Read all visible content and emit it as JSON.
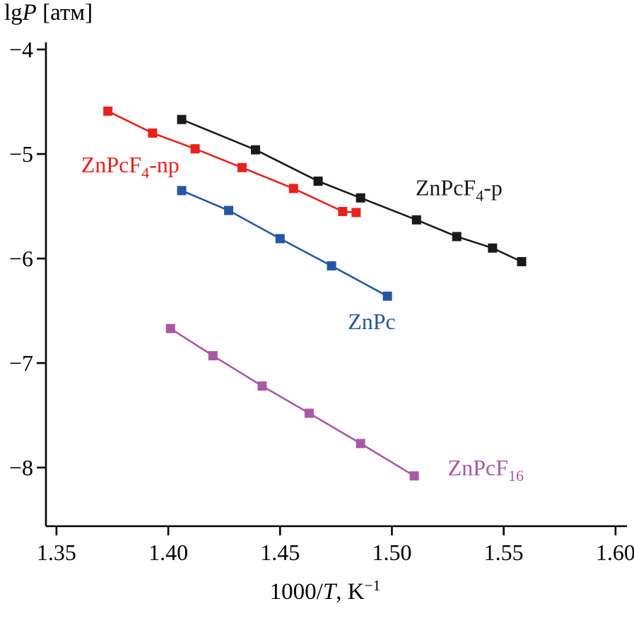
{
  "chart_data": {
    "type": "line",
    "title": "",
    "y_axis_title_parts": [
      {
        "t": "lg"
      },
      {
        "t": "P",
        "italic": true
      },
      {
        "t": " [атм]"
      }
    ],
    "x_axis_title_parts": [
      {
        "t": "1000/"
      },
      {
        "t": "T",
        "italic": true
      },
      {
        "t": ", K"
      },
      {
        "t": "−1",
        "sup": true
      }
    ],
    "xlim": [
      1.3453,
      1.6051
    ],
    "ylim": [
      -8.561,
      -3.932
    ],
    "grid": false,
    "legend_position": "inline-annotations",
    "x_ticks": [
      {
        "value": 1.35,
        "label": "1.35"
      },
      {
        "value": 1.4,
        "label": "1.40"
      },
      {
        "value": 1.45,
        "label": "1.45"
      },
      {
        "value": 1.5,
        "label": "1.50"
      },
      {
        "value": 1.55,
        "label": "1.55"
      },
      {
        "value": 1.6,
        "label": "1.60"
      }
    ],
    "y_ticks": [
      {
        "value": -4,
        "label": "−4"
      },
      {
        "value": -5,
        "label": "−5"
      },
      {
        "value": -6,
        "label": "−6"
      },
      {
        "value": -7,
        "label": "−7"
      },
      {
        "value": -8,
        "label": "−8"
      }
    ],
    "series": [
      {
        "name": "ZnPcF4-np",
        "color": "#e8211d",
        "label_parts": [
          {
            "t": "ZnPcF"
          },
          {
            "t": "4",
            "sub": true
          },
          {
            "t": "-np"
          }
        ],
        "label_pos": {
          "x": 1.383,
          "y": -5.1
        },
        "points": [
          [
            1.373,
            -4.59
          ],
          [
            1.393,
            -4.8
          ],
          [
            1.412,
            -4.95
          ],
          [
            1.433,
            -5.13
          ],
          [
            1.456,
            -5.33
          ],
          [
            1.478,
            -5.55
          ],
          [
            1.484,
            -5.56
          ]
        ]
      },
      {
        "name": "ZnPcF4-p",
        "color": "#1a1a1a",
        "label_parts": [
          {
            "t": "ZnPcF"
          },
          {
            "t": "4",
            "sub": true
          },
          {
            "t": "-p"
          }
        ],
        "label_pos": {
          "x": 1.53,
          "y": -5.32
        },
        "points": [
          [
            1.406,
            -4.67
          ],
          [
            1.439,
            -4.96
          ],
          [
            1.467,
            -5.26
          ],
          [
            1.486,
            -5.42
          ],
          [
            1.511,
            -5.63
          ],
          [
            1.529,
            -5.79
          ],
          [
            1.545,
            -5.9
          ],
          [
            1.558,
            -6.03
          ]
        ]
      },
      {
        "name": "ZnPc",
        "color": "#2456a4",
        "label_parts": [
          {
            "t": "ZnPc"
          }
        ],
        "label_pos": {
          "x": 1.491,
          "y": -6.6
        },
        "points": [
          [
            1.406,
            -5.35
          ],
          [
            1.427,
            -5.54
          ],
          [
            1.45,
            -5.81
          ],
          [
            1.473,
            -6.07
          ],
          [
            1.498,
            -6.36
          ]
        ]
      },
      {
        "name": "ZnPcF16",
        "color": "#a859a6",
        "label_parts": [
          {
            "t": "ZnPcF"
          },
          {
            "t": "16",
            "sub": true
          }
        ],
        "label_pos": {
          "x": 1.542,
          "y": -8.0
        },
        "points": [
          [
            1.401,
            -6.67
          ],
          [
            1.42,
            -6.93
          ],
          [
            1.442,
            -7.22
          ],
          [
            1.463,
            -7.48
          ],
          [
            1.486,
            -7.77
          ],
          [
            1.51,
            -8.08
          ]
        ]
      }
    ]
  }
}
